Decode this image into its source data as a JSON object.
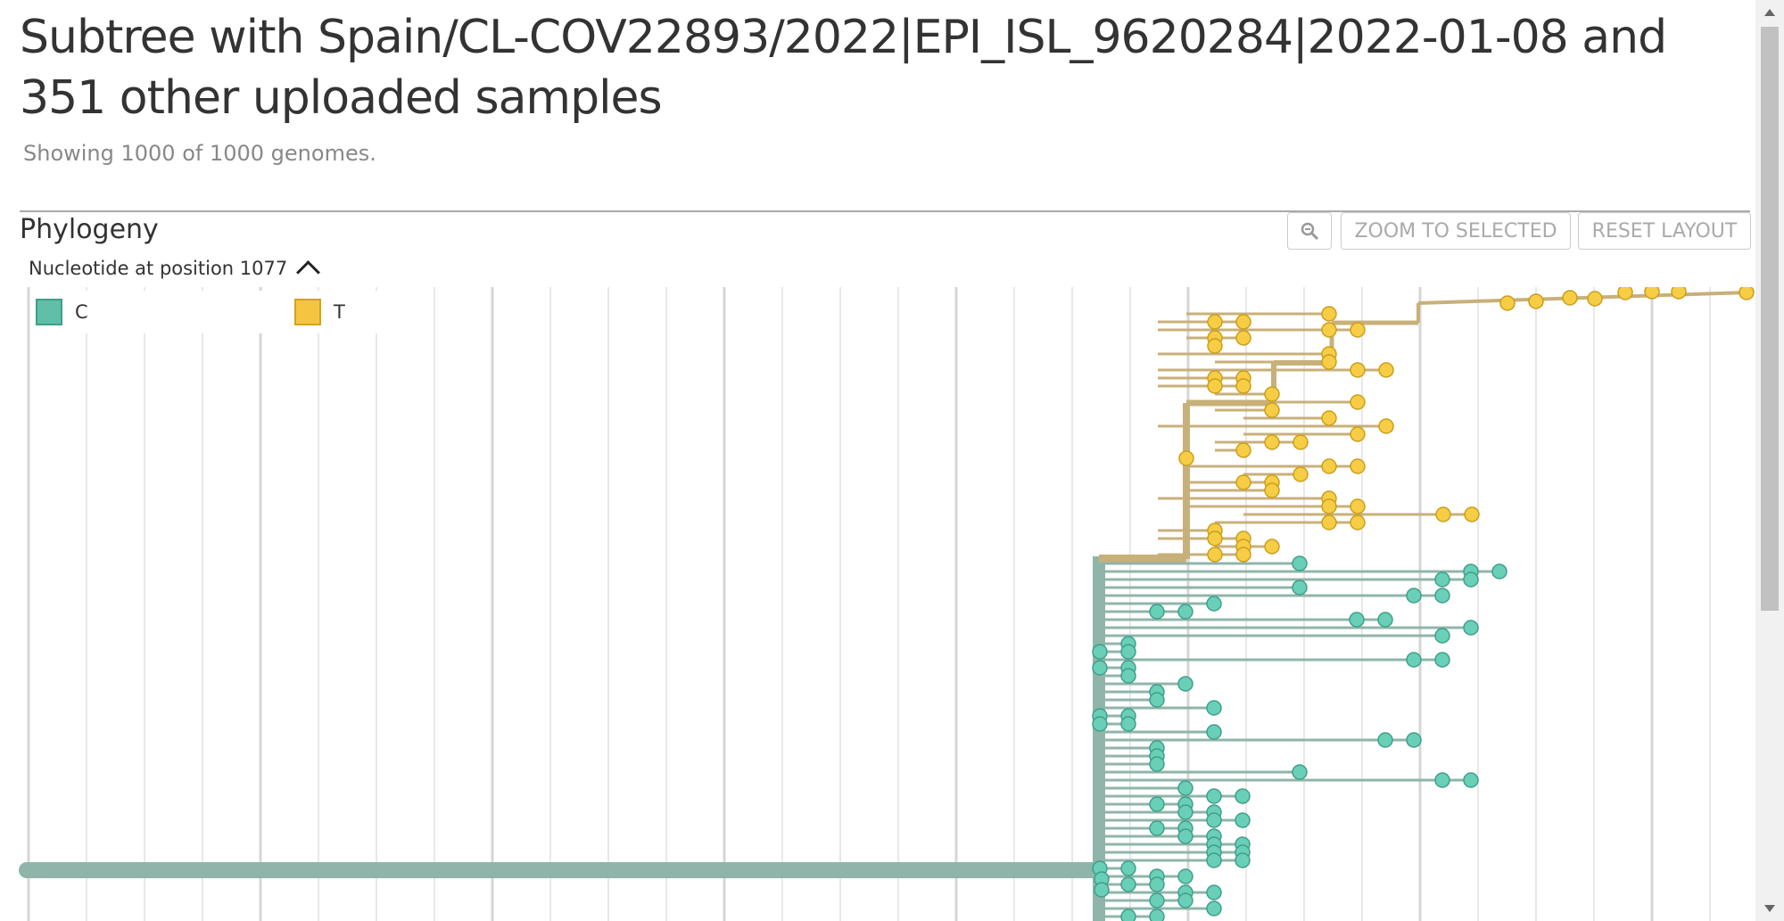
{
  "page": {
    "title": "Subtree with Spain/CL-COV22893/2022|EPI_ISL_9620284|2022-01-08 and 351 other uploaded samples",
    "subtitle": "Showing 1000 of 1000 genomes."
  },
  "panel": {
    "title": "Phylogeny",
    "color_by_label": "Nucleotide at position 1077",
    "zoom_icon": "magnifier-icon",
    "zoom_to_selected_label": "ZOOM TO SELECTED",
    "reset_layout_label": "RESET LAYOUT"
  },
  "legend": [
    {
      "label": "C",
      "color": "#5fbfa9",
      "border": "#3f9f89"
    },
    {
      "label": "T",
      "color": "#f5c542",
      "border": "#d4a21a"
    }
  ],
  "colors": {
    "c_branch": "#8fb5aa",
    "c_tip": "#69cfb6",
    "c_tip_stroke": "#3f9f89",
    "t_branch": "#c8b07a",
    "t_tip": "#f6cd45",
    "t_tip_stroke": "#cc9e1a",
    "grid": "#e8e8e8",
    "grid_major": "#d6d6d6"
  }
}
